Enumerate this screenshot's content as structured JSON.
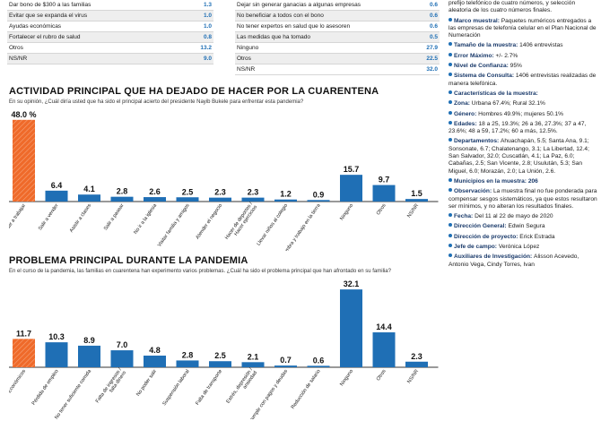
{
  "top_left_table": [
    {
      "label": "Dar bono de $300 a las familias",
      "value": "1.3"
    },
    {
      "label": "Evitar que se expanda el virus",
      "value": "1.0"
    },
    {
      "label": "Ayudas económicas",
      "value": "1.0"
    },
    {
      "label": "Fortalecer el rubro de salud",
      "value": "0.8"
    },
    {
      "label": "Otros",
      "value": "13.2"
    },
    {
      "label": "NS/NR",
      "value": "9.0"
    }
  ],
  "top_mid_table": [
    {
      "label": "Dejar sin generar ganacias a algunas empresas",
      "value": "0.6"
    },
    {
      "label": "No beneficiar a todos con el bono",
      "value": "0.6"
    },
    {
      "label": "No tener expertos en salud que lo asesoren",
      "value": "0.6"
    },
    {
      "label": "Las medidas que ha tomado",
      "value": "0.5"
    },
    {
      "label": "Ninguno",
      "value": "27.9"
    },
    {
      "label": "Otros",
      "value": "22.5"
    },
    {
      "label": "NS/NR",
      "value": "32.0"
    }
  ],
  "colors": {
    "blue": "#1f6fb5",
    "orange": "#ef6a2a"
  },
  "chart_data": [
    {
      "type": "bar",
      "title": "ACTIVIDAD PRINCIPAL QUE HA DEJADO DE HACER POR LA CUARENTENA",
      "subtitle": "En su opinión, ¿Cuál diría usted que ha sido el principal acierto del presidente Nayib Bukele para enfrentar esta pandemia?",
      "categories": [
        "Salir a trabajar",
        "Salir a vender",
        "Asistir a clases",
        "Salir a pasear",
        "No ir a la iglesia",
        "Visitar familia y amigos",
        "Atender el negocio",
        "Hacer de deportes / Hacer ejercicios",
        "Llevar niños al colegio",
        "Siembra y trabajo en la tierra",
        "Ninguno",
        "Otros",
        "NS/NR"
      ],
      "values": [
        48.0,
        6.4,
        4.1,
        2.8,
        2.6,
        2.5,
        2.3,
        2.3,
        1.2,
        0.9,
        15.7,
        9.7,
        1.5
      ],
      "value_labels": [
        "48.0 %",
        "6.4",
        "4.1",
        "2.8",
        "2.6",
        "2.5",
        "2.3",
        "2.3",
        "1.2",
        "0.9",
        "15.7",
        "9.7",
        "1.5"
      ],
      "highlight_index": 0,
      "ylim": [
        0,
        50
      ]
    },
    {
      "type": "bar",
      "title": "PROBLEMA PRINCIPAL DURANTE LA PANDEMIA",
      "subtitle": "En el curso de la pandemia, las familias en cuarentena han experimento varios problemas. ¿Cuál ha sido el problema principal que han afrontado en su familia?",
      "categories": [
        "Económicos",
        "Pérdida de empleo",
        "No tener suficiente comida",
        "Falta de ingresos / falta dinero",
        "No poder salir",
        "Suspensión laboral",
        "Falta de transporte",
        "Estrés, depresión / ansiedad",
        "No poder cumplir con pagos y deudas",
        "Reducción de salario",
        "Ninguno",
        "Otros",
        "NS/NR"
      ],
      "values": [
        11.7,
        10.3,
        8.9,
        7.0,
        4.8,
        2.8,
        2.5,
        2.1,
        0.7,
        0.6,
        32.1,
        14.4,
        2.3
      ],
      "value_labels": [
        "11.7",
        "10.3",
        "8.9",
        "7.0",
        "4.8",
        "2.8",
        "2.5",
        "2.1",
        "0.7",
        "0.6",
        "32.1",
        "14.4",
        "2.3"
      ],
      "highlight_index": 0,
      "ylim": [
        0,
        34
      ]
    }
  ],
  "right_column": [
    {
      "bold": "",
      "text": "prefijo telefónico de cuatro números, y selección aleatoria de los cuatro números finales.",
      "bullet": false
    },
    {
      "bold": "Marco muestral:",
      "text": "Paquetes numéricos entregados a las empresas de telefonía celular en el Plan Nacional de Numeración",
      "bullet": true
    },
    {
      "bold": "Tamaño de la muestra:",
      "text": "1406 entrevistas",
      "bullet": true
    },
    {
      "bold": "Error Máximo:",
      "text": "+/- 2.7%",
      "bullet": true
    },
    {
      "bold": "Nivel de Confianza:",
      "text": "95%",
      "bullet": true
    },
    {
      "bold": "Sistema de Consulta:",
      "text": "1406 entrevistas realizadas de manera telefónica.",
      "bullet": true
    },
    {
      "bold": "Características de la muestra:",
      "text": "",
      "bullet": true
    },
    {
      "bold": "Zona:",
      "text": "Urbana 67.4%; Rural 32.1%",
      "bullet": true
    },
    {
      "bold": "Género:",
      "text": "Hombres 49.9%; mujeres 50.1%",
      "bullet": true
    },
    {
      "bold": "Edades:",
      "text": "18 a 25, 19.3%; 26 a 36, 27.3%; 37 a 47, 23.6%; 48 a 59, 17.2%; 60 a más, 12.5%.",
      "bullet": true
    },
    {
      "bold": "Departamentos:",
      "text": "Ahuachapán, 5.5; Santa Ana, 9.1; Sonsonate, 6.7; Chalatenango, 3.1; La Libertad, 12.4; San Salvador, 32.0; Cuscatlán, 4.1; La Paz, 6.0; Cabañas, 2.5; San Vicente, 2.8; Usulután, 5.3; San Miguel, 6.0; Morazán, 2.0; La Unión, 2.6.",
      "bullet": true
    },
    {
      "bold": "Municipios en la muestra:",
      "text": "206",
      "bullet": true,
      "bold_value": true
    },
    {
      "bold": "Observación:",
      "text": "La muestra final no fue ponderada para compensar sesgos sistemáticos, ya que estos resultaron ser mínimos, y no alteran los resultados finales.",
      "bullet": true
    },
    {
      "bold": "Fecha:",
      "text": "Del 11 al 22 de mayo de 2020",
      "bullet": true
    },
    {
      "bold": "Dirección General:",
      "text": "Edwin Segura",
      "bullet": true
    },
    {
      "bold": "Dirección de proyecto:",
      "text": "Erick Estrada",
      "bullet": true
    },
    {
      "bold": "Jefe de campo:",
      "text": "Verónica López",
      "bullet": true
    },
    {
      "bold": "Auxiliares de Investigación:",
      "text": "Alisson Acevedo, Antonio Vega, Cindy Torres, Ivan",
      "bullet": true
    }
  ]
}
